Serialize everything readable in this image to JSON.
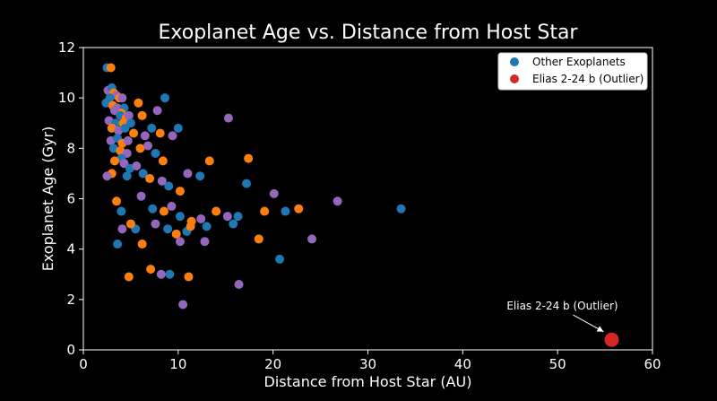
{
  "chart_data": {
    "type": "scatter",
    "title": "Exoplanet Age vs. Distance from Host Star",
    "xlabel": "Distance from Host Star (AU)",
    "ylabel": "Exoplanet Age (Gyr)",
    "xlim": [
      0,
      60
    ],
    "ylim": [
      0,
      12
    ],
    "xticks": [
      "0",
      "10",
      "20",
      "30",
      "40",
      "50",
      "60"
    ],
    "yticks": [
      "0",
      "2",
      "4",
      "6",
      "8",
      "10",
      "12"
    ],
    "grid": false,
    "legend_position": "top-right",
    "background": "#000000",
    "series": [
      {
        "name": "Other Exoplanets",
        "color": "#1f77b4",
        "point_colors": [
          "#1f77b4",
          "#ff7f0e",
          "#9467bd"
        ],
        "points": [
          [
            2.5,
            11.2
          ],
          [
            2.9,
            11.2
          ],
          [
            2.6,
            10.3
          ],
          [
            3.0,
            10.4
          ],
          [
            3.2,
            10.2
          ],
          [
            3.5,
            10.1
          ],
          [
            2.8,
            10.0
          ],
          [
            3.8,
            10.0
          ],
          [
            4.1,
            10.0
          ],
          [
            2.4,
            9.8
          ],
          [
            3.1,
            9.7
          ],
          [
            3.6,
            9.6
          ],
          [
            4.3,
            9.6
          ],
          [
            4.0,
            9.4
          ],
          [
            3.3,
            9.5
          ],
          [
            3.9,
            9.3
          ],
          [
            4.5,
            9.2
          ],
          [
            2.7,
            9.1
          ],
          [
            3.4,
            9.0
          ],
          [
            4.2,
            9.0
          ],
          [
            4.8,
            9.3
          ],
          [
            5.0,
            9.0
          ],
          [
            3.0,
            8.8
          ],
          [
            3.7,
            8.7
          ],
          [
            4.4,
            8.8
          ],
          [
            5.3,
            8.6
          ],
          [
            2.9,
            8.3
          ],
          [
            3.6,
            8.4
          ],
          [
            4.1,
            8.2
          ],
          [
            4.7,
            8.3
          ],
          [
            3.2,
            8.0
          ],
          [
            3.9,
            7.9
          ],
          [
            4.6,
            7.8
          ],
          [
            4.0,
            7.6
          ],
          [
            3.3,
            7.5
          ],
          [
            4.3,
            7.4
          ],
          [
            4.9,
            7.2
          ],
          [
            3.0,
            7.0
          ],
          [
            2.5,
            6.9
          ],
          [
            4.6,
            6.9
          ],
          [
            6.2,
            9.3
          ],
          [
            7.8,
            9.5
          ],
          [
            8.6,
            10.0
          ],
          [
            5.8,
            9.8
          ],
          [
            6.5,
            8.5
          ],
          [
            7.2,
            8.8
          ],
          [
            8.1,
            8.6
          ],
          [
            9.4,
            8.5
          ],
          [
            10.0,
            8.8
          ],
          [
            6.0,
            8.0
          ],
          [
            6.8,
            8.1
          ],
          [
            7.6,
            7.8
          ],
          [
            8.4,
            7.5
          ],
          [
            5.6,
            7.3
          ],
          [
            6.3,
            7.0
          ],
          [
            7.0,
            6.8
          ],
          [
            8.3,
            6.7
          ],
          [
            9.0,
            6.5
          ],
          [
            10.2,
            6.3
          ],
          [
            11.0,
            7.0
          ],
          [
            12.3,
            6.9
          ],
          [
            13.3,
            7.5
          ],
          [
            15.3,
            9.2
          ],
          [
            17.2,
            6.6
          ],
          [
            17.4,
            7.6
          ],
          [
            6.1,
            6.1
          ],
          [
            7.3,
            5.6
          ],
          [
            8.5,
            5.5
          ],
          [
            9.3,
            5.7
          ],
          [
            10.2,
            5.3
          ],
          [
            11.4,
            5.1
          ],
          [
            12.4,
            5.2
          ],
          [
            13.0,
            4.9
          ],
          [
            14.0,
            5.5
          ],
          [
            15.2,
            5.3
          ],
          [
            16.3,
            5.3
          ],
          [
            19.1,
            5.5
          ],
          [
            20.1,
            6.2
          ],
          [
            21.3,
            5.5
          ],
          [
            22.7,
            5.6
          ],
          [
            26.8,
            5.9
          ],
          [
            33.5,
            5.6
          ],
          [
            3.5,
            5.9
          ],
          [
            4.1,
            4.8
          ],
          [
            5.5,
            4.8
          ],
          [
            6.2,
            4.2
          ],
          [
            7.6,
            5.0
          ],
          [
            8.9,
            4.8
          ],
          [
            9.8,
            4.6
          ],
          [
            10.2,
            4.3
          ],
          [
            10.9,
            4.7
          ],
          [
            11.3,
            4.9
          ],
          [
            12.8,
            4.3
          ],
          [
            15.8,
            5.0
          ],
          [
            18.5,
            4.4
          ],
          [
            24.1,
            4.4
          ],
          [
            3.6,
            4.2
          ],
          [
            7.1,
            3.2
          ],
          [
            8.2,
            3.0
          ],
          [
            9.1,
            3.0
          ],
          [
            11.1,
            2.9
          ],
          [
            16.4,
            2.6
          ],
          [
            20.7,
            3.6
          ],
          [
            4.8,
            2.9
          ],
          [
            10.5,
            1.8
          ],
          [
            4.0,
            5.5
          ],
          [
            5.0,
            5.0
          ]
        ]
      },
      {
        "name": "Elias 2-24 b (Outlier)",
        "color": "#d62728",
        "points": [
          [
            55.7,
            0.4
          ]
        ]
      }
    ],
    "annotations": [
      {
        "text": "Elias 2-24 b (Outlier)",
        "xy": [
          55.7,
          0.4
        ],
        "xytext": [
          50.5,
          1.6
        ]
      }
    ]
  }
}
